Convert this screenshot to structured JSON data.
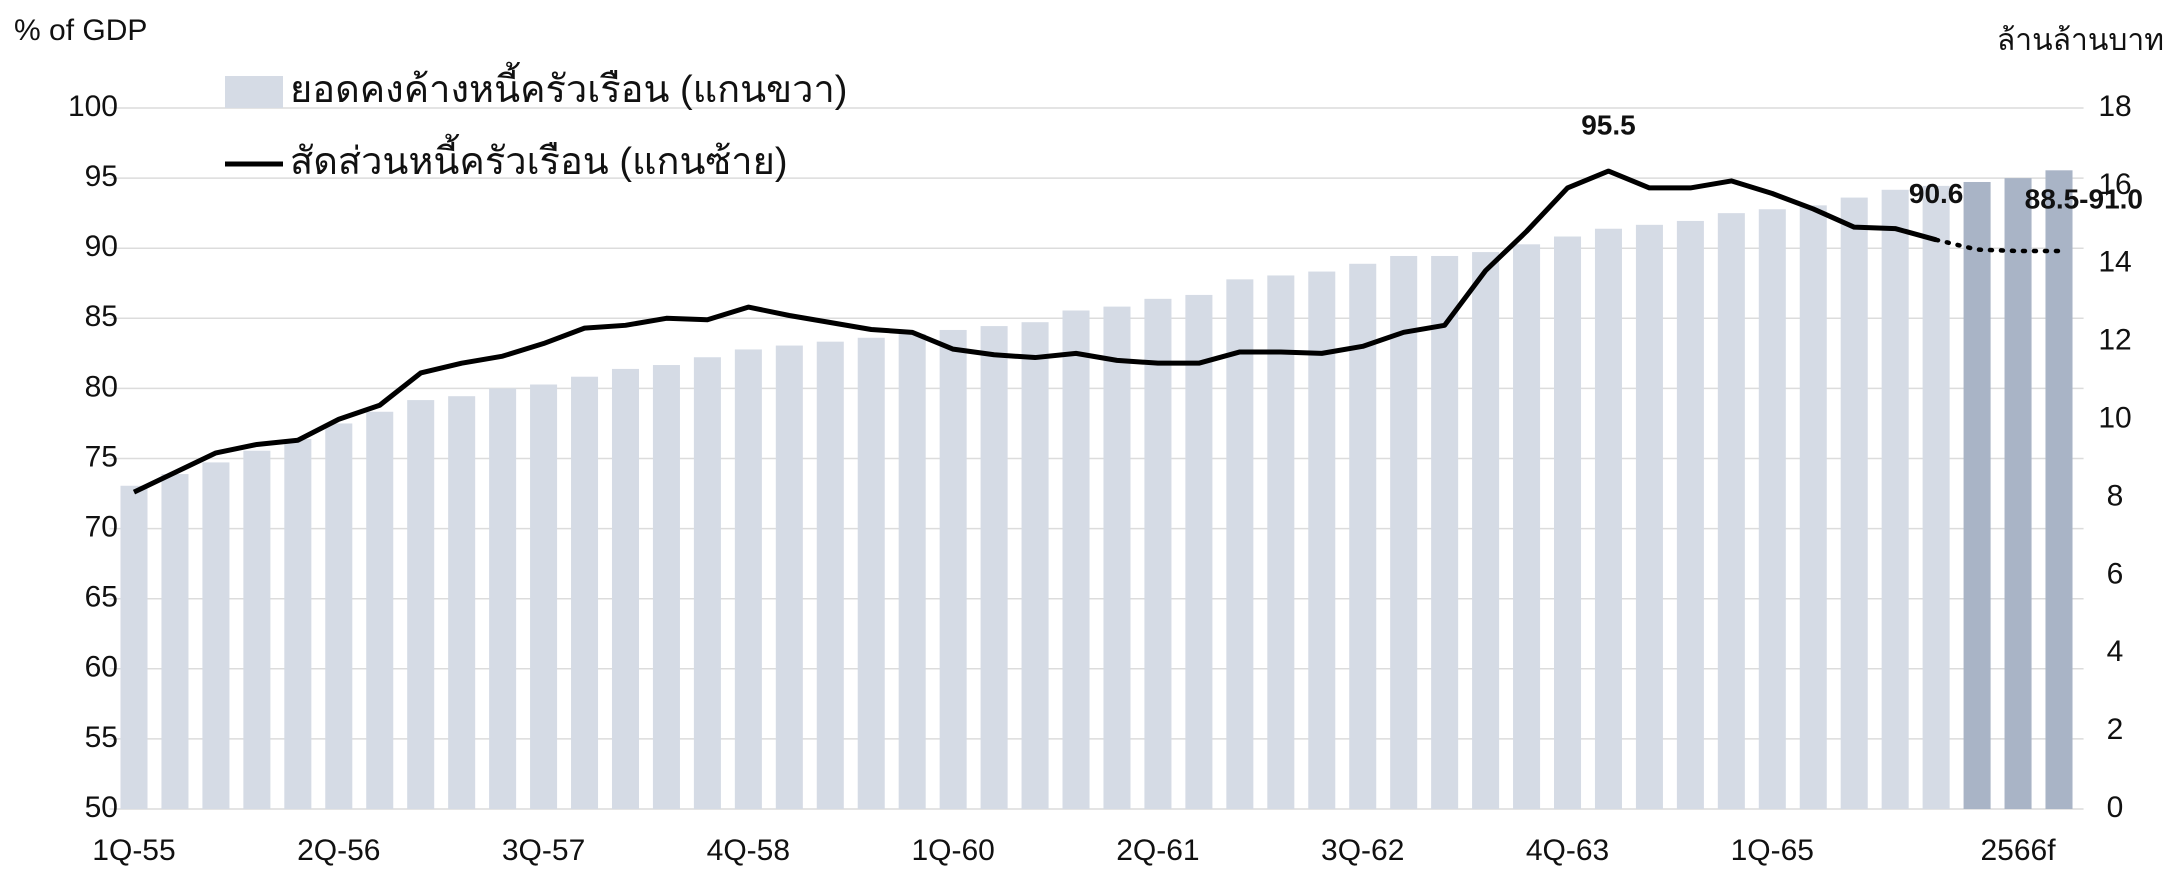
{
  "chart_data": {
    "type": "bar",
    "ylabel": "% of GDP",
    "y2label": "ล้านล้านบาท",
    "categories": [
      "1Q-55",
      null,
      null,
      null,
      null,
      "2Q-56",
      null,
      null,
      null,
      null,
      "3Q-57",
      null,
      null,
      null,
      null,
      "4Q-58",
      null,
      null,
      null,
      null,
      "1Q-60",
      null,
      null,
      null,
      null,
      "2Q-61",
      null,
      null,
      null,
      null,
      "3Q-62",
      null,
      null,
      null,
      null,
      "4Q-63",
      null,
      null,
      null,
      null,
      "1Q-65",
      null,
      null,
      null,
      null,
      null,
      "2566f",
      null
    ],
    "ylim": [
      50,
      100
    ],
    "yticks": [
      50,
      55,
      60,
      65,
      70,
      75,
      80,
      85,
      90,
      95,
      100
    ],
    "y2lim": [
      0,
      18
    ],
    "y2ticks": [
      0,
      2,
      4,
      6,
      8,
      10,
      12,
      14,
      16,
      18
    ],
    "grid": true,
    "series": [
      {
        "name": "ยอดคงค้างหนี้ครัวเรือน (แกนขวา)",
        "type": "bar",
        "axis": "y2",
        "color": "#d5dbe5",
        "colors": [
          "#d5dbe5",
          "#d5dbe5",
          "#d5dbe5",
          "#d5dbe5",
          "#d5dbe5",
          "#d5dbe5",
          "#d5dbe5",
          "#d5dbe5",
          "#d5dbe5",
          "#d5dbe5",
          "#d5dbe5",
          "#d5dbe5",
          "#d5dbe5",
          "#d5dbe5",
          "#d5dbe5",
          "#d5dbe5",
          "#d5dbe5",
          "#d5dbe5",
          "#d5dbe5",
          "#d5dbe5",
          "#d5dbe5",
          "#d5dbe5",
          "#d5dbe5",
          "#d5dbe5",
          "#d5dbe5",
          "#d5dbe5",
          "#d5dbe5",
          "#d5dbe5",
          "#d5dbe5",
          "#d5dbe5",
          "#d5dbe5",
          "#d5dbe5",
          "#d5dbe5",
          "#d5dbe5",
          "#d5dbe5",
          "#d5dbe5",
          "#d5dbe5",
          "#d5dbe5",
          "#d5dbe5",
          "#d5dbe5",
          "#d5dbe5",
          "#d5dbe5",
          "#d5dbe5",
          "#d5dbe5",
          "#d5dbe5",
          "#a9b4c6",
          "#a9b4c6",
          "#a9b4c6"
        ],
        "values": [
          8.3,
          8.6,
          8.9,
          9.2,
          9.5,
          9.9,
          10.2,
          10.5,
          10.6,
          10.8,
          10.9,
          11.1,
          11.3,
          11.4,
          11.6,
          11.8,
          11.9,
          12.0,
          12.1,
          12.2,
          12.3,
          12.4,
          12.5,
          12.8,
          12.9,
          13.1,
          13.2,
          13.6,
          13.7,
          13.8,
          14.0,
          14.2,
          14.2,
          14.3,
          14.5,
          14.7,
          14.9,
          15.0,
          15.1,
          15.3,
          15.4,
          15.5,
          15.7,
          15.9,
          16.0,
          16.1,
          16.2,
          16.4
        ]
      },
      {
        "name": "สัดส่วนหนี้ครัวเรือน (แกนซ้าย)",
        "type": "line",
        "axis": "y",
        "color": "#000000",
        "values": [
          72.6,
          74.0,
          75.4,
          76.0,
          76.3,
          77.8,
          78.8,
          81.1,
          81.8,
          82.3,
          83.2,
          84.3,
          84.5,
          85.0,
          84.9,
          85.8,
          85.2,
          84.7,
          84.2,
          84.0,
          82.8,
          82.4,
          82.2,
          82.5,
          82.0,
          81.8,
          81.8,
          82.6,
          82.6,
          82.5,
          83.0,
          84.0,
          84.5,
          88.4,
          91.2,
          94.3,
          95.5,
          94.3,
          94.3,
          94.8,
          93.9,
          92.8,
          91.5,
          91.4,
          90.6,
          null,
          null,
          null
        ],
        "value_labels": [
          null,
          null,
          null,
          null,
          null,
          null,
          null,
          null,
          null,
          null,
          null,
          null,
          null,
          null,
          null,
          null,
          null,
          null,
          null,
          null,
          null,
          null,
          null,
          null,
          null,
          null,
          null,
          null,
          null,
          null,
          null,
          null,
          null,
          null,
          null,
          null,
          "95.5",
          null,
          null,
          null,
          null,
          null,
          null,
          null,
          "90.6",
          null,
          null,
          null
        ]
      },
      {
        "type": "line",
        "axis": "y",
        "color": "#000000",
        "style": "dotted",
        "values": [
          null,
          null,
          null,
          null,
          null,
          null,
          null,
          null,
          null,
          null,
          null,
          null,
          null,
          null,
          null,
          null,
          null,
          null,
          null,
          null,
          null,
          null,
          null,
          null,
          null,
          null,
          null,
          null,
          null,
          null,
          null,
          null,
          null,
          null,
          null,
          null,
          null,
          null,
          null,
          null,
          null,
          null,
          null,
          null,
          90.6,
          89.9,
          89.8,
          89.8
        ],
        "value_labels": [
          null,
          null,
          null,
          null,
          null,
          null,
          null,
          null,
          null,
          null,
          null,
          null,
          null,
          null,
          null,
          null,
          null,
          null,
          null,
          null,
          null,
          null,
          null,
          null,
          null,
          null,
          null,
          null,
          null,
          null,
          null,
          null,
          null,
          null,
          null,
          null,
          null,
          null,
          null,
          null,
          null,
          null,
          null,
          null,
          null,
          null,
          null,
          "88.5-91.0"
        ]
      }
    ]
  }
}
